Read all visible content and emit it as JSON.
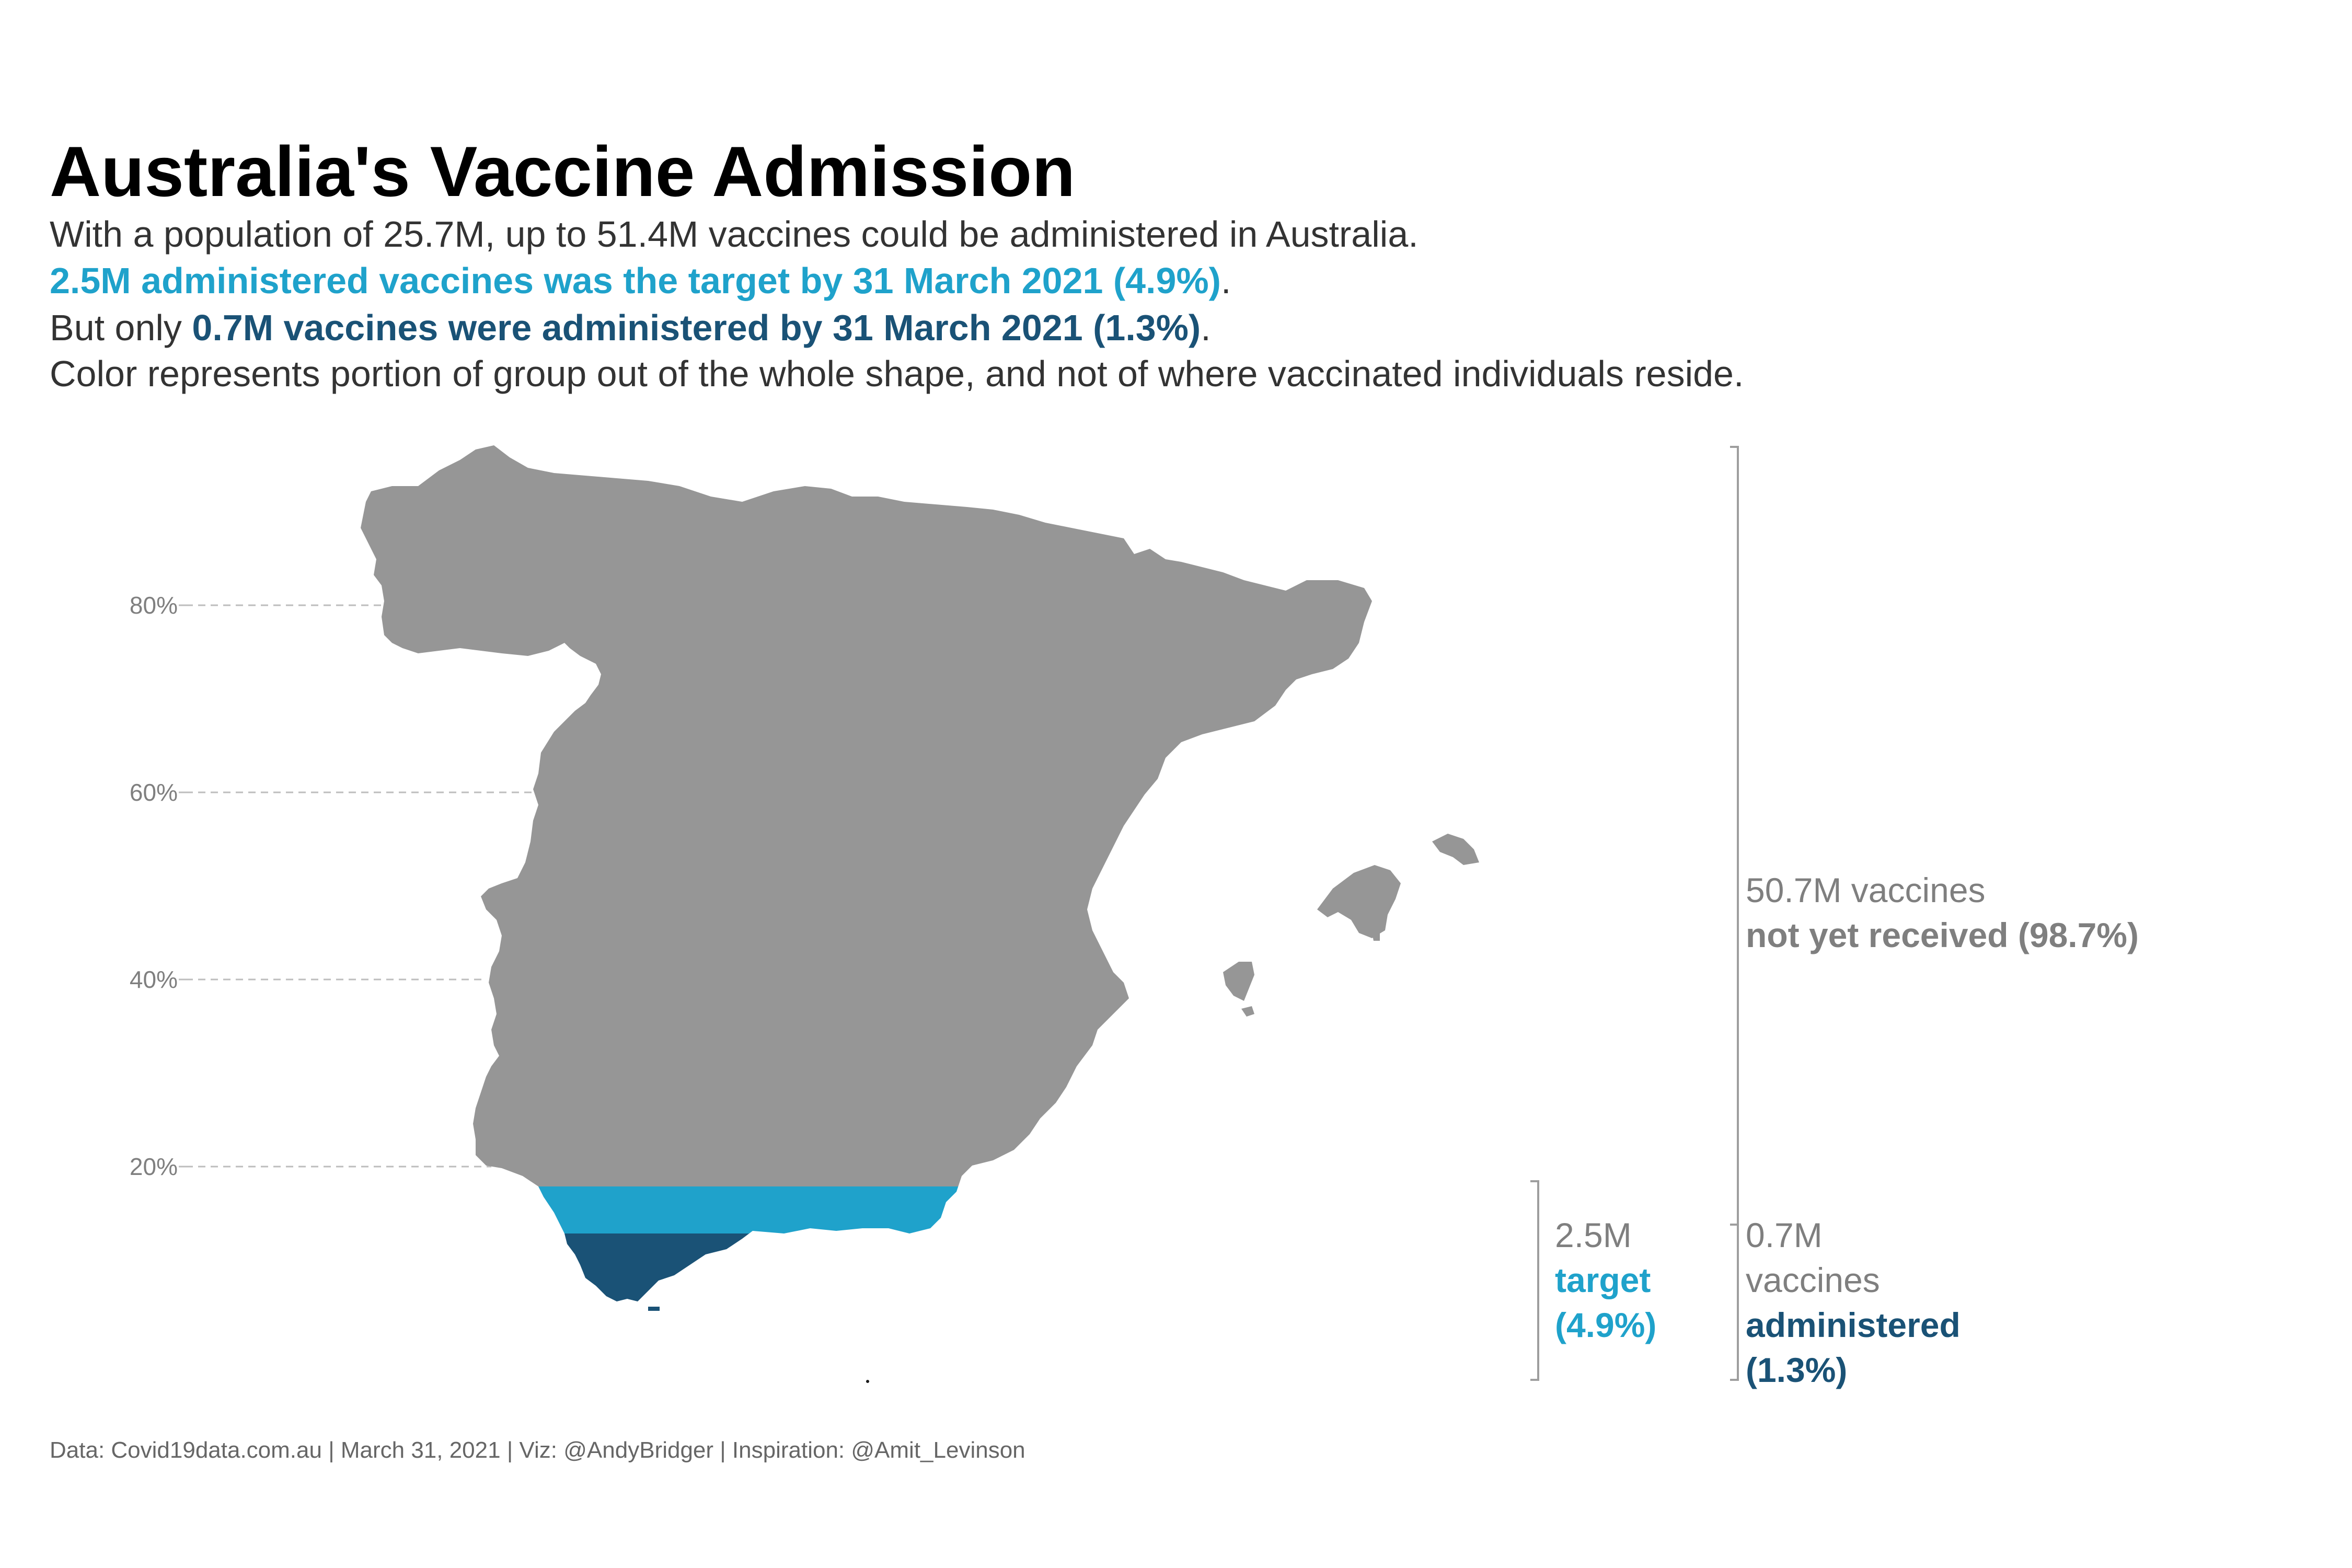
{
  "title": "Australia's Vaccine Admission",
  "subtitle": {
    "line1": "With a population of 25.7M, up to 51.4M vaccines could be administered in Australia.",
    "line2_bold": "2.5M administered vaccines was the target by 31 March 2021 (4.9%)",
    "line2_end": ".",
    "line3_start": "But only ",
    "line3_bold": "0.7M vaccines were administered by 31 March 2021 (1.3%)",
    "line3_end": ".",
    "line4": "Color represents portion of group out of the whole shape, and not of where vaccinated individuals reside."
  },
  "annotations": {
    "not_received": {
      "line1": "50.7M vaccines",
      "line2": "not yet received (98.7%)"
    },
    "target": {
      "line1": "2.5M",
      "line2": "target",
      "line3": "(4.9%)"
    },
    "administered": {
      "line1": "0.7M",
      "line2": "vaccines",
      "line3": "administered",
      "line4": "(1.3%)"
    }
  },
  "caption": "Data: Covid19data.com.au | March 31, 2021 | Viz: @AndyBridger | Inspiration: @Amit_Levinson",
  "colors": {
    "not_received": "#969696",
    "target": "#1fa2cb",
    "administered": "#1a5276",
    "grid": "#bdbdbd",
    "bracket": "#9e9e9e"
  },
  "chart_data": {
    "type": "area",
    "shape": "map-of-spain",
    "title": "Australia's Vaccine Admission",
    "y_axis": {
      "ticks": [
        0.2,
        0.4,
        0.6,
        0.8
      ],
      "tick_labels": [
        "20%",
        "40%",
        "60%",
        "80%"
      ],
      "range": [
        0,
        1
      ],
      "gridlines": "dashed, left of shape only"
    },
    "total_vaccines_millions": 51.4,
    "population_millions": 25.7,
    "series": [
      {
        "name": "not yet received",
        "value_millions": 50.7,
        "share": 0.987
      },
      {
        "name": "target",
        "value_millions": 2.5,
        "share": 0.049
      },
      {
        "name": "administered",
        "value_millions": 0.7,
        "share": 0.013
      }
    ]
  }
}
